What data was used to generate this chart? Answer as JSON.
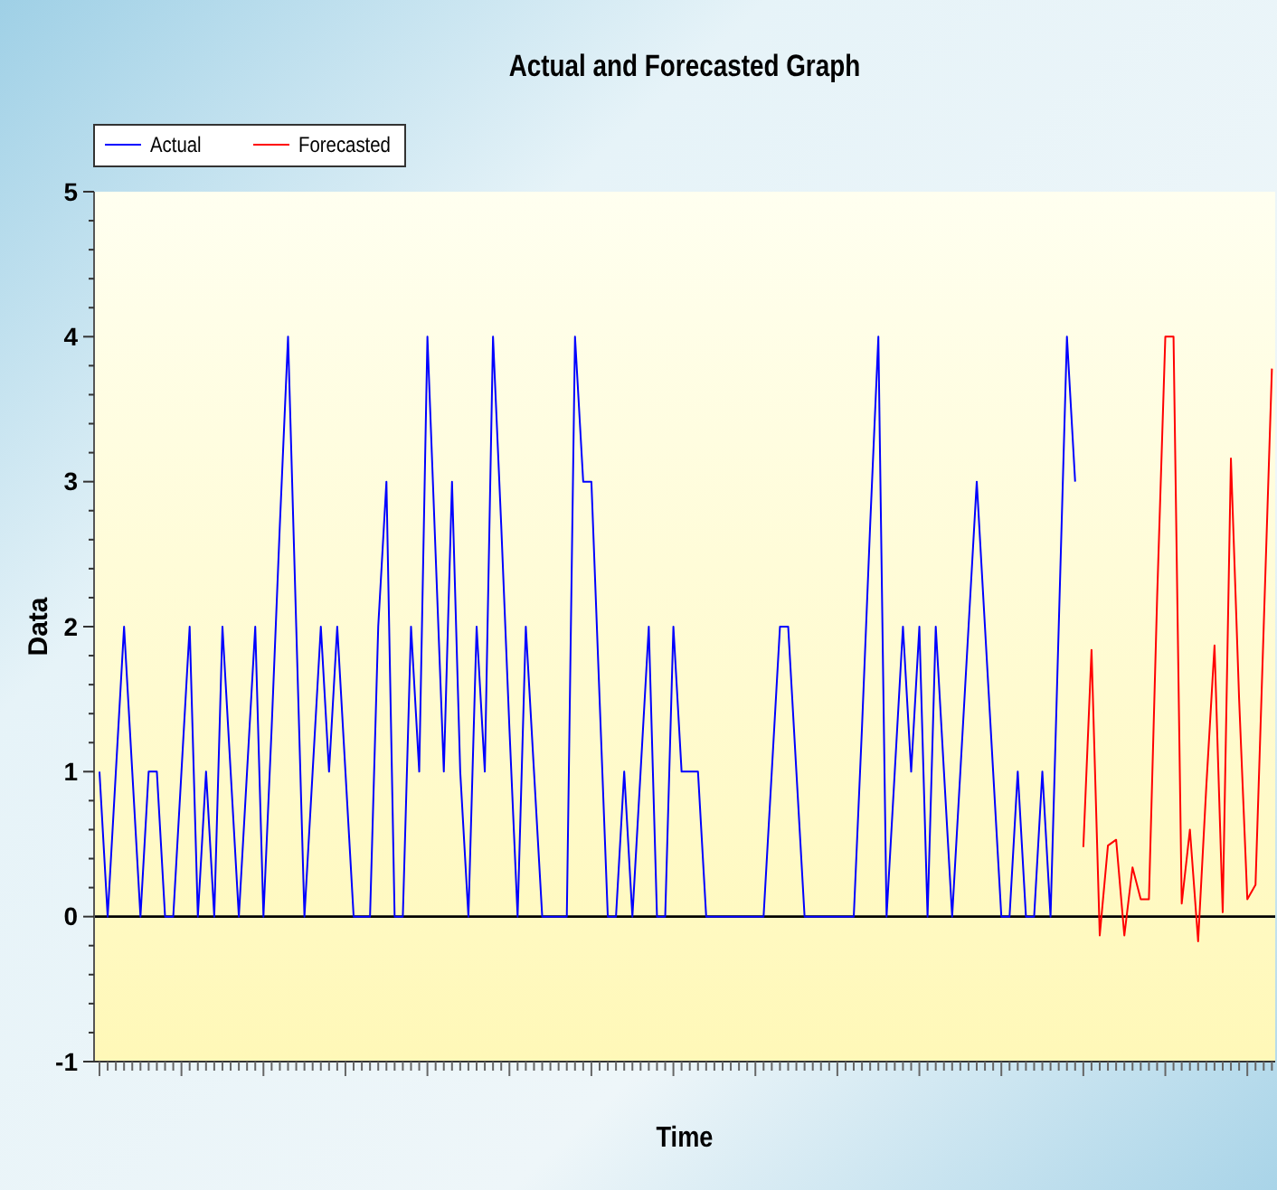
{
  "chart_data": {
    "type": "line",
    "title": "Actual and Forecasted Graph",
    "xlabel": "Time",
    "ylabel": "Data",
    "categories": [
      null,
      null,
      null,
      null,
      null,
      null,
      null,
      null,
      null,
      null,
      null,
      null,
      null,
      null,
      null,
      null,
      null,
      null,
      null,
      null,
      null,
      null,
      null,
      null,
      null,
      null,
      null,
      null,
      null,
      null,
      null,
      null,
      null,
      null,
      null,
      null,
      null,
      null,
      null,
      null,
      null,
      null,
      null,
      null,
      null,
      null,
      null,
      null,
      null,
      null,
      null,
      null,
      null,
      null,
      null,
      null,
      null,
      null,
      null,
      null,
      null,
      null,
      null,
      null,
      null,
      null,
      null,
      null,
      null,
      null,
      null,
      null,
      null,
      null,
      null,
      null,
      null,
      null,
      null,
      null,
      null,
      null,
      null,
      null,
      null,
      null,
      null,
      null,
      null,
      null,
      null,
      null,
      null,
      null,
      null,
      null,
      null,
      null,
      null,
      null,
      null,
      null,
      null,
      null,
      null,
      null,
      null,
      null,
      null,
      null,
      null,
      null,
      null,
      null,
      null,
      null,
      null,
      null,
      null,
      null,
      null,
      null,
      null,
      null,
      null,
      null,
      null,
      null,
      null,
      null,
      null,
      null,
      null,
      null,
      null,
      null,
      null,
      null,
      null,
      null,
      null,
      null,
      null,
      null
    ],
    "series": [
      {
        "name": "Actual",
        "color": "#0000ff",
        "values": [
          1,
          0,
          1,
          2,
          1,
          0,
          1,
          1,
          0,
          0,
          1,
          2,
          0,
          1,
          0,
          2,
          1,
          0,
          1,
          2,
          0,
          1.3,
          2.7,
          4,
          2,
          0,
          1,
          2,
          1,
          2,
          1,
          0,
          0,
          0,
          2,
          3,
          0,
          0,
          2,
          1,
          4,
          2.5,
          1,
          3,
          1,
          0,
          2,
          1,
          4,
          2.7,
          1.3,
          0,
          2,
          1,
          0,
          0,
          0,
          0,
          4,
          3,
          3,
          1.5,
          0,
          0,
          1,
          0,
          1,
          2,
          0,
          0,
          2,
          1,
          1,
          1,
          0,
          0,
          0,
          0,
          0,
          0,
          0,
          0,
          1,
          2,
          2,
          1,
          0,
          0,
          0,
          0,
          0,
          0,
          0,
          1.3,
          2.7,
          4,
          0,
          1,
          2,
          1,
          2,
          0,
          2,
          1,
          0,
          1,
          2,
          3,
          2,
          1,
          0,
          0,
          1,
          0,
          0,
          1,
          0,
          2,
          4,
          3,
          null,
          null,
          null,
          null,
          null,
          null,
          null,
          null,
          null,
          null,
          null,
          null,
          null,
          null,
          null,
          null,
          null,
          null,
          null,
          null,
          null,
          null,
          null,
          null
        ]
      },
      {
        "name": "Forecasted",
        "color": "#ff0000",
        "values": [
          null,
          null,
          null,
          null,
          null,
          null,
          null,
          null,
          null,
          null,
          null,
          null,
          null,
          null,
          null,
          null,
          null,
          null,
          null,
          null,
          null,
          null,
          null,
          null,
          null,
          null,
          null,
          null,
          null,
          null,
          null,
          null,
          null,
          null,
          null,
          null,
          null,
          null,
          null,
          null,
          null,
          null,
          null,
          null,
          null,
          null,
          null,
          null,
          null,
          null,
          null,
          null,
          null,
          null,
          null,
          null,
          null,
          null,
          null,
          null,
          null,
          null,
          null,
          null,
          null,
          null,
          null,
          null,
          null,
          null,
          null,
          null,
          null,
          null,
          null,
          null,
          null,
          null,
          null,
          null,
          null,
          null,
          null,
          null,
          null,
          null,
          null,
          null,
          null,
          null,
          null,
          null,
          null,
          null,
          null,
          null,
          null,
          null,
          null,
          null,
          null,
          null,
          null,
          null,
          null,
          null,
          null,
          null,
          null,
          null,
          null,
          null,
          null,
          null,
          null,
          null,
          null,
          null,
          null,
          null,
          0.48,
          1.84,
          -0.13,
          0.49,
          0.53,
          -0.13,
          0.34,
          0.12,
          0.12,
          2.2,
          4,
          4,
          0.09,
          0.6,
          -0.17,
          0.9,
          1.87,
          0.03,
          3.16,
          1.5,
          0.12,
          0.22,
          2,
          3.78
        ]
      }
    ],
    "ylim": [
      -1,
      5
    ],
    "yticks": [
      -1,
      0,
      1,
      2,
      3,
      4,
      5
    ],
    "ref_lines": [
      {
        "axis": "y",
        "value": 0,
        "color": "#000000"
      }
    ],
    "legend": "top left"
  }
}
